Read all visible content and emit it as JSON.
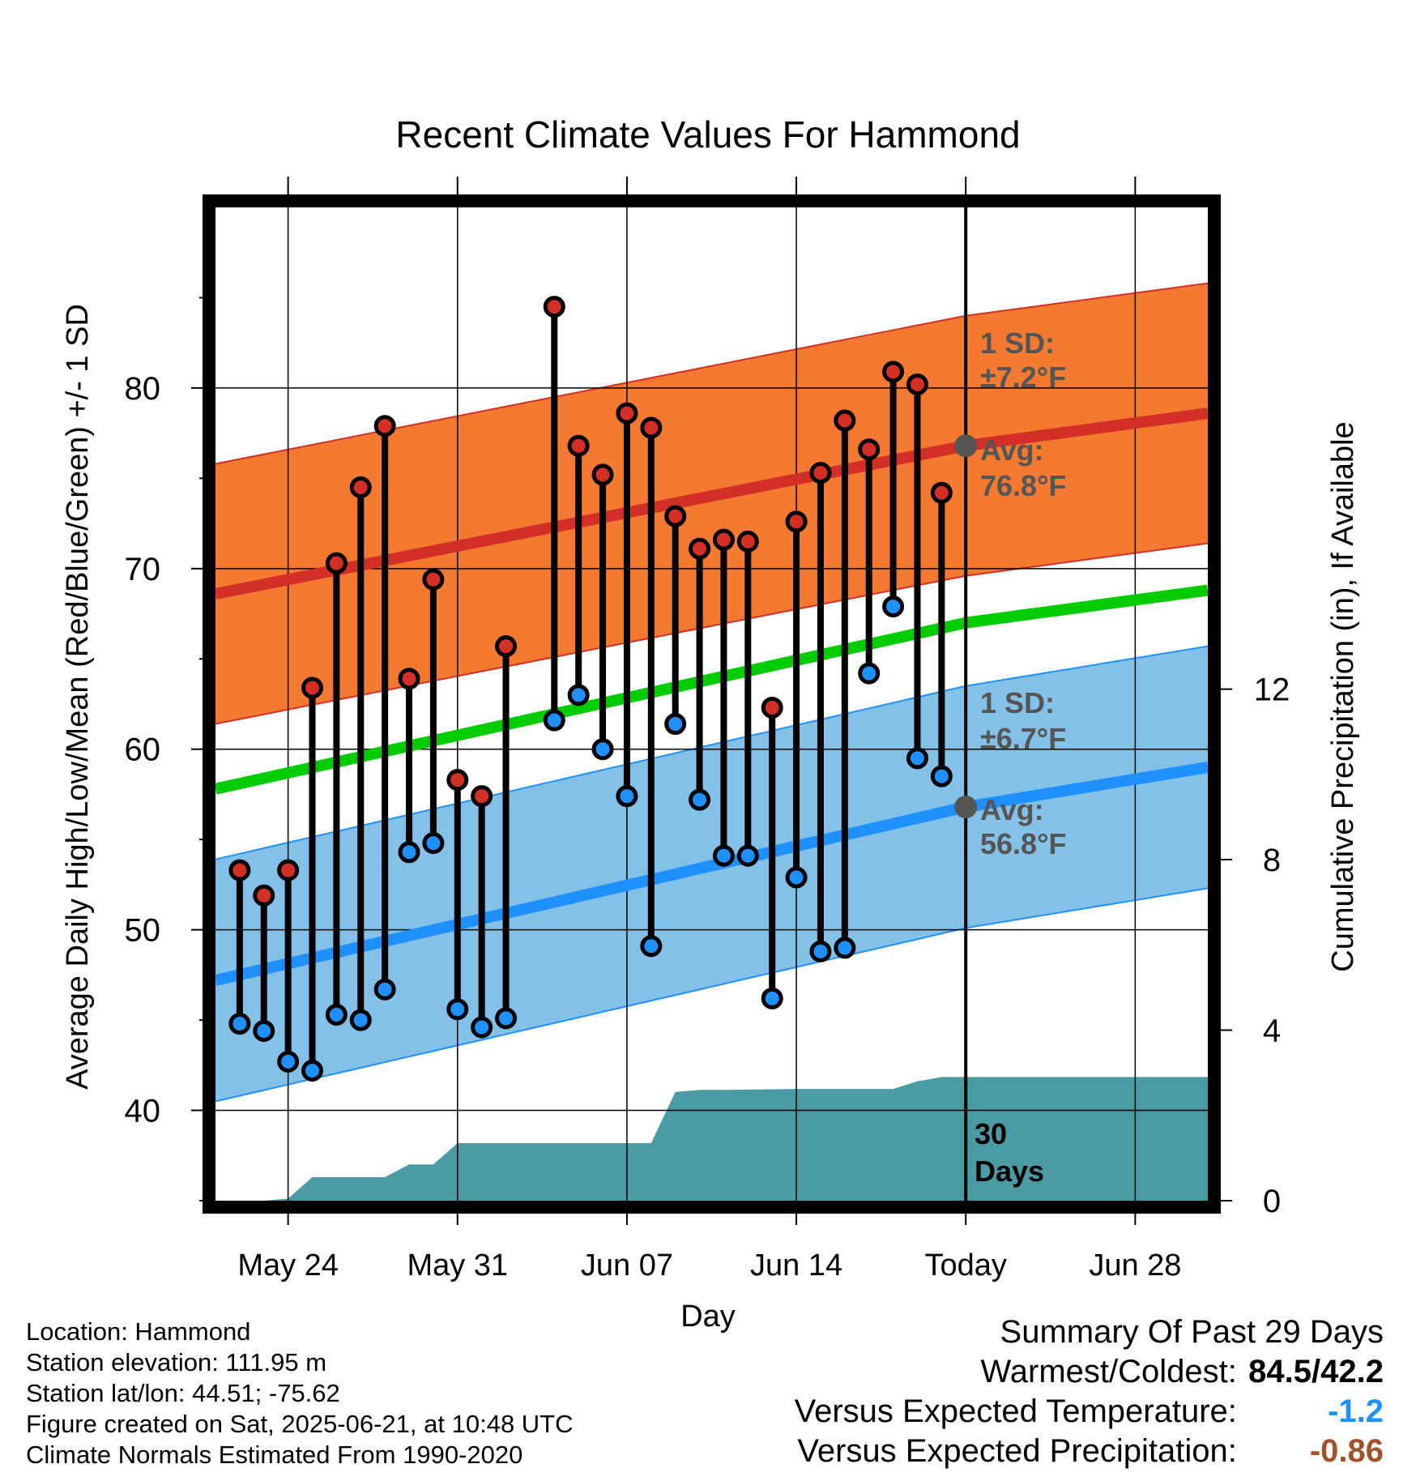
{
  "title": "Recent Climate Values For Hammond",
  "ylabel_left": "Average Daily High/Low/Mean (Red/Blue/Green) +/- 1 SD",
  "ylabel_right": "Cumulative Precipitation (in), If Available",
  "xlabel": "Day",
  "colors": {
    "high_band": "#f47a31",
    "high_line": "#d42f27",
    "low_band": "#84c1e8",
    "low_line": "#1e90ff",
    "mean_line": "#00cc00",
    "precip": "#4a9ba4",
    "avg_marker": "#555555",
    "annot_text": "#555555",
    "temp_departure": "#1e90ff",
    "precip_departure": "#a0522d"
  },
  "annotations": {
    "high_sd_line1": "1 SD:",
    "high_sd_line2": "±7.2°F",
    "high_avg_line1": "Avg:",
    "high_avg_line2": "76.8°F",
    "low_sd_line1": "1 SD:",
    "low_sd_line2": "±6.7°F",
    "low_avg_line1": "Avg:",
    "low_avg_line2": "56.8°F",
    "window_line1": "30",
    "window_line2": "Days"
  },
  "chart_data": {
    "type": "line",
    "x_unit": "day",
    "x_range": [
      "2025-05-21",
      "2025-07-01"
    ],
    "today": "2025-06-21",
    "ylim_left": [
      35,
      90
    ],
    "yticks_left": [
      40,
      50,
      60,
      70,
      80
    ],
    "ylim_right": [
      0,
      23.3
    ],
    "yticks_right": [
      0,
      4,
      8,
      12
    ],
    "xticks": [
      {
        "date": "2025-05-24",
        "label": "May 24"
      },
      {
        "date": "2025-05-31",
        "label": "May 31"
      },
      {
        "date": "2025-06-07",
        "label": "Jun 07"
      },
      {
        "date": "2025-06-14",
        "label": "Jun 14"
      },
      {
        "date": "2025-06-21",
        "label": "Today"
      },
      {
        "date": "2025-06-28",
        "label": "Jun 28"
      }
    ],
    "normals": {
      "dates": [
        "2025-05-21",
        "2025-06-21",
        "2025-07-01"
      ],
      "high_avg": [
        68.6,
        76.8,
        78.6
      ],
      "high_sd": 7.2,
      "low_avg": [
        47.2,
        56.8,
        59.0
      ],
      "low_sd": 6.7,
      "mean_avg": [
        57.8,
        67.0,
        68.8
      ]
    },
    "observed": {
      "dates": [
        "2025-05-22",
        "2025-05-23",
        "2025-05-24",
        "2025-05-25",
        "2025-05-26",
        "2025-05-27",
        "2025-05-28",
        "2025-05-29",
        "2025-05-30",
        "2025-05-31",
        "2025-06-01",
        "2025-06-02",
        "2025-06-04",
        "2025-06-05",
        "2025-06-06",
        "2025-06-07",
        "2025-06-08",
        "2025-06-09",
        "2025-06-10",
        "2025-06-11",
        "2025-06-12",
        "2025-06-13",
        "2025-06-14",
        "2025-06-15",
        "2025-06-16",
        "2025-06-17",
        "2025-06-18",
        "2025-06-19",
        "2025-06-20"
      ],
      "high": [
        53.3,
        51.9,
        53.3,
        63.4,
        70.3,
        74.5,
        77.9,
        63.9,
        69.4,
        58.3,
        57.4,
        65.7,
        84.5,
        76.8,
        75.2,
        78.6,
        77.8,
        72.9,
        71.1,
        71.6,
        71.5,
        62.3,
        72.6,
        75.3,
        78.2,
        76.6,
        80.9,
        80.2,
        74.2
      ],
      "low": [
        44.8,
        44.4,
        42.7,
        42.2,
        45.3,
        45.0,
        46.7,
        54.3,
        54.8,
        45.6,
        44.6,
        45.1,
        61.6,
        63.0,
        60.0,
        57.4,
        49.1,
        61.4,
        57.2,
        54.1,
        54.1,
        46.2,
        52.9,
        48.8,
        49.0,
        64.2,
        67.9,
        59.5,
        58.5
      ]
    },
    "precip_cumulative": {
      "dates": [
        "2025-05-21",
        "2025-05-23",
        "2025-05-24",
        "2025-05-25",
        "2025-05-26",
        "2025-05-27",
        "2025-05-28",
        "2025-05-29",
        "2025-05-30",
        "2025-05-31",
        "2025-06-01",
        "2025-06-08",
        "2025-06-09",
        "2025-06-10",
        "2025-06-11",
        "2025-06-14",
        "2025-06-17",
        "2025-06-18",
        "2025-06-19",
        "2025-06-20",
        "2025-07-01"
      ],
      "values": [
        0,
        0,
        0.05,
        0.55,
        0.55,
        0.55,
        0.55,
        0.85,
        0.85,
        1.35,
        1.35,
        1.35,
        2.55,
        2.6,
        2.6,
        2.62,
        2.62,
        2.62,
        2.8,
        2.9,
        2.9
      ]
    }
  },
  "info": {
    "location": "Location: Hammond",
    "elevation": "Station elevation: 111.95 m",
    "latlon": "Station lat/lon: 44.51; -75.62",
    "created": "Figure created on Sat, 2025-06-21, at 10:48 UTC",
    "normals": "Climate Normals Estimated From 1990-2020"
  },
  "summary": {
    "heading": "Summary Of Past 29 Days",
    "warm_cold_label": "Warmest/Coldest:",
    "warm_cold_value": "84.5/42.2",
    "temp_label": "Versus Expected Temperature:",
    "temp_value": "-1.2",
    "precip_label": "Versus Expected Precipitation:",
    "precip_value": "-0.86"
  }
}
